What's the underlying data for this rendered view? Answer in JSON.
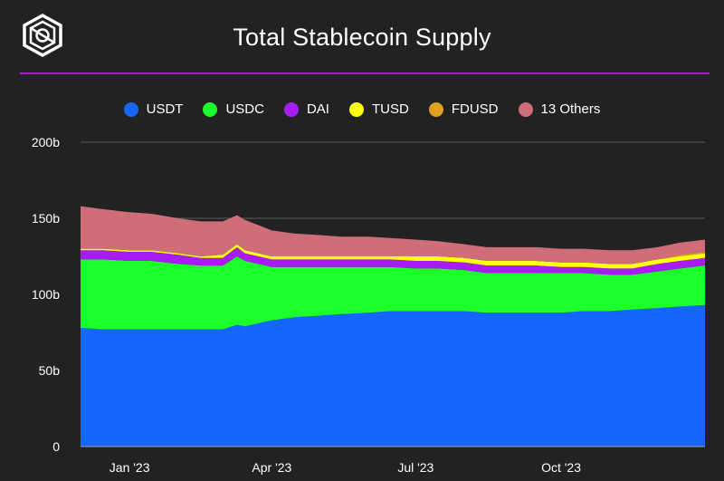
{
  "header": {
    "title": "Total Stablecoin Supply"
  },
  "logo": {
    "icon": "the-block-logo-icon",
    "color": "#ffffff"
  },
  "accent_color": "#9b1fd6",
  "chart_data": {
    "type": "area",
    "stacked": true,
    "title": "Total Stablecoin Supply",
    "xlabel": "",
    "ylabel": "",
    "ylim": [
      0,
      200
    ],
    "y_ticks": [
      0,
      50,
      100,
      150,
      200
    ],
    "y_tick_labels": [
      "0",
      "50b",
      "100b",
      "150b",
      "200b"
    ],
    "x_ticks": [
      "2023-01-01",
      "2023-04-01",
      "2023-07-01",
      "2023-10-01"
    ],
    "x_tick_labels": [
      "Jan '23",
      "Apr '23",
      "Jul '23",
      "Oct '23"
    ],
    "grid": true,
    "legend_position": "top",
    "x": [
      "2022-12-01",
      "2022-12-15",
      "2023-01-01",
      "2023-01-15",
      "2023-02-01",
      "2023-02-15",
      "2023-03-01",
      "2023-03-10",
      "2023-03-15",
      "2023-04-01",
      "2023-04-15",
      "2023-05-01",
      "2023-05-15",
      "2023-06-01",
      "2023-06-15",
      "2023-07-01",
      "2023-07-15",
      "2023-08-01",
      "2023-08-15",
      "2023-09-01",
      "2023-09-15",
      "2023-10-01",
      "2023-10-15",
      "2023-11-01",
      "2023-11-15",
      "2023-12-01",
      "2023-12-15",
      "2023-12-31"
    ],
    "series": [
      {
        "name": "USDT",
        "color": "#1565ff",
        "values": [
          78,
          77,
          77,
          77,
          77,
          77,
          77,
          80,
          79,
          83,
          85,
          86,
          87,
          88,
          89,
          89,
          89,
          89,
          88,
          88,
          88,
          88,
          89,
          89,
          90,
          91,
          92,
          93
        ]
      },
      {
        "name": "USDC",
        "color": "#1dff2a",
        "values": [
          45,
          46,
          45,
          45,
          43,
          42,
          42,
          45,
          43,
          35,
          33,
          32,
          31,
          30,
          29,
          28,
          28,
          27,
          26,
          26,
          26,
          26,
          25,
          24,
          23,
          24,
          25,
          26
        ]
      },
      {
        "name": "DAI",
        "color": "#a71cf5",
        "values": [
          6,
          6,
          6,
          6,
          6,
          5,
          5,
          6,
          5,
          5,
          5,
          5,
          5,
          5,
          5,
          5,
          5,
          5,
          5,
          5,
          5,
          4,
          4,
          4,
          4,
          5,
          5,
          5
        ]
      },
      {
        "name": "TUSD",
        "color": "#ffff14",
        "values": [
          1,
          1,
          1,
          1,
          1,
          1,
          2,
          2,
          2,
          2,
          2,
          2,
          2,
          2,
          2,
          3,
          3,
          3,
          3,
          3,
          3,
          3,
          3,
          3,
          3,
          3,
          3,
          3
        ]
      },
      {
        "name": "FDUSD",
        "color": "#e0a020",
        "values": [
          0,
          0,
          0,
          0,
          0,
          0,
          0,
          0,
          0,
          0,
          0,
          0,
          0,
          0,
          0,
          0,
          0,
          0,
          0,
          0,
          0,
          0,
          0,
          0,
          0,
          0,
          1,
          1
        ]
      },
      {
        "name": "13 Others",
        "color": "#cf6e78",
        "values": [
          28,
          26,
          25,
          24,
          23,
          23,
          22,
          19,
          20,
          17,
          15,
          14,
          13,
          13,
          12,
          11,
          10,
          9,
          9,
          9,
          9,
          9,
          9,
          9,
          9,
          8,
          8,
          8
        ]
      }
    ]
  }
}
